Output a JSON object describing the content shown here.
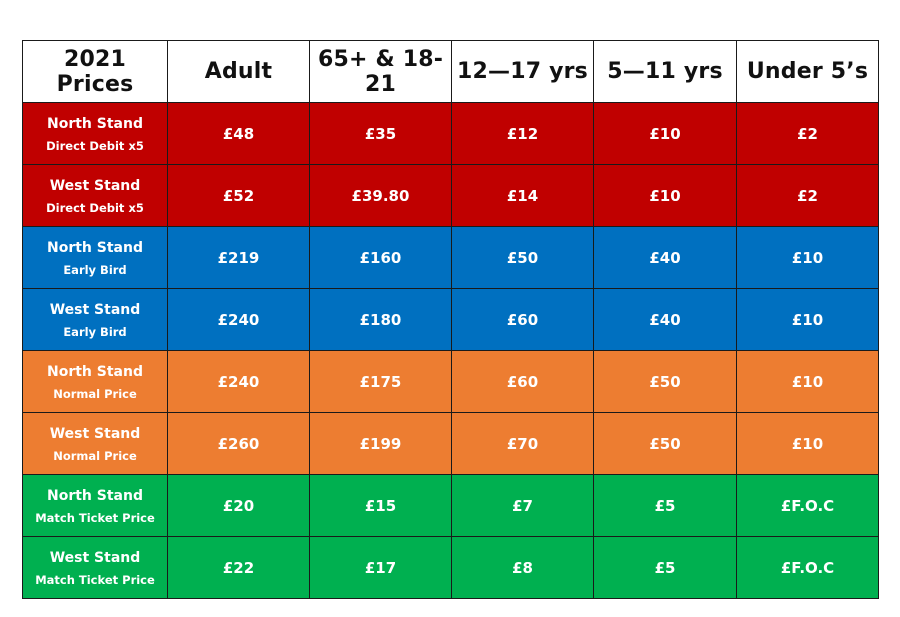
{
  "colors": {
    "direct_debit": "#c00000",
    "early_bird": "#0070c0",
    "normal_price": "#ed7d31",
    "match_ticket": "#00b050"
  },
  "headers": [
    "2021 Prices",
    "Adult",
    "65+ & 18-21",
    "12—17 yrs",
    "5—11 yrs",
    "Under 5’s"
  ],
  "rows": [
    {
      "stand": "North Stand",
      "ticket": "Direct Debit x5",
      "values": [
        "£48",
        "£35",
        "£12",
        "£10",
        "£2"
      ]
    },
    {
      "stand": "West Stand",
      "ticket": "Direct Debit x5",
      "values": [
        "£52",
        "£39.80",
        "£14",
        "£10",
        "£2"
      ]
    },
    {
      "stand": "North Stand",
      "ticket": "Early Bird",
      "values": [
        "£219",
        "£160",
        "£50",
        "£40",
        "£10"
      ]
    },
    {
      "stand": "West Stand",
      "ticket": "Early Bird",
      "values": [
        "£240",
        "£180",
        "£60",
        "£40",
        "£10"
      ]
    },
    {
      "stand": "North Stand",
      "ticket": "Normal Price",
      "values": [
        "£240",
        "£175",
        "£60",
        "£50",
        "£10"
      ]
    },
    {
      "stand": "West Stand",
      "ticket": "Normal Price",
      "values": [
        "£260",
        "£199",
        "£70",
        "£50",
        "£10"
      ]
    },
    {
      "stand": "North Stand",
      "ticket": "Match Ticket Price",
      "values": [
        "£20",
        "£15",
        "£7",
        "£5",
        "£F.O.C"
      ]
    },
    {
      "stand": "West Stand",
      "ticket": "Match Ticket Price",
      "values": [
        "£22",
        "£17",
        "£8",
        "£5",
        "£F.O.C"
      ]
    }
  ]
}
